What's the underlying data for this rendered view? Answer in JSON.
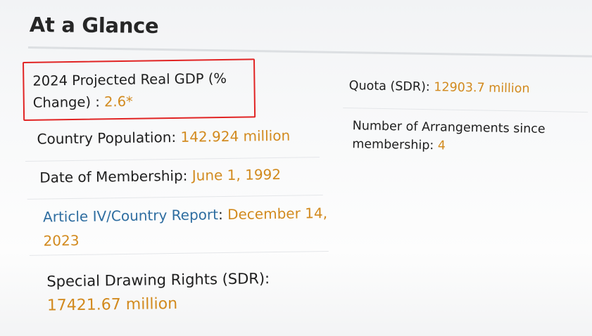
{
  "heading": "At a Glance",
  "left_facts": {
    "gdp": {
      "label": "2024 Projected Real GDP (% Change) : ",
      "value": "2.6*"
    },
    "population": {
      "label": "Country Population: ",
      "value": "142.924 million"
    },
    "membership_date": {
      "label": "Date of Membership: ",
      "value": "June 1, 1992"
    },
    "article_iv": {
      "link": "Article IV/Country Report",
      "sep": ": ",
      "value": "December 14, 2023"
    },
    "sdr": {
      "label": "Special Drawing Rights (SDR): ",
      "value": "17421.67 million"
    }
  },
  "right_facts": {
    "quota": {
      "label": "Quota (SDR): ",
      "value": "12903.7 million"
    },
    "arrangements": {
      "label": "Number of Arrangements since membership: ",
      "value": "4"
    }
  },
  "colors": {
    "value": "#d28a1e",
    "link": "#2e6da0",
    "highlight_border": "#e12424"
  }
}
